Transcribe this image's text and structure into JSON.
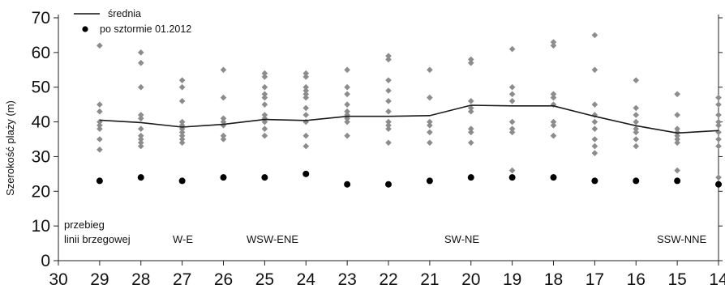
{
  "chart_data": {
    "type": "scatter",
    "ylabel": "Szerokość plaży (m)",
    "xlabel": "",
    "x_ticks": [
      30,
      29,
      28,
      27,
      26,
      25,
      24,
      23,
      22,
      21,
      20,
      19,
      18,
      17,
      16,
      15,
      14
    ],
    "y_ticks": [
      0,
      10,
      20,
      30,
      40,
      50,
      60,
      70
    ],
    "xlim": [
      30,
      14
    ],
    "ylim": [
      0,
      70
    ],
    "legend_position": "top-left",
    "legend": [
      {
        "label": "średnia",
        "marker": "line"
      },
      {
        "label": "po sztormie 01.2012",
        "marker": "dot"
      }
    ],
    "annotations": [
      "przebieg",
      "linii brzegowej",
      "W-E",
      "WSW-ENE",
      "SW-NE",
      "SSW-NNE"
    ],
    "series": [
      {
        "name": "średnia",
        "kind": "line",
        "color": "#1a1a1a",
        "points": [
          [
            29,
            40.5
          ],
          [
            28,
            39.8
          ],
          [
            27,
            38.5
          ],
          [
            26,
            39.3
          ],
          [
            25,
            40.7
          ],
          [
            24,
            40.4
          ],
          [
            23,
            41.6
          ],
          [
            22,
            41.6
          ],
          [
            21,
            41.8
          ],
          [
            20,
            44.8
          ],
          [
            19,
            44.6
          ],
          [
            18,
            44.6
          ],
          [
            17,
            41.6
          ],
          [
            16,
            38.9
          ],
          [
            15,
            36.8
          ],
          [
            14,
            37.5
          ]
        ]
      },
      {
        "name": "po sztormie 01.2012",
        "kind": "dot",
        "color": "#000000",
        "points": [
          [
            29,
            23
          ],
          [
            28,
            24
          ],
          [
            27,
            23
          ],
          [
            26,
            24
          ],
          [
            25,
            24
          ],
          [
            24,
            25
          ],
          [
            23,
            22
          ],
          [
            22,
            22
          ],
          [
            21,
            23
          ],
          [
            20,
            24
          ],
          [
            19,
            24
          ],
          [
            18,
            24
          ],
          [
            17,
            23
          ],
          [
            16,
            23
          ],
          [
            15,
            23
          ],
          [
            14,
            22
          ]
        ]
      },
      {
        "kind": "diamond",
        "color": "#8c8c8c",
        "points": [
          [
            29,
            62
          ],
          [
            29,
            45
          ],
          [
            29,
            43
          ],
          [
            29,
            40
          ],
          [
            29,
            39
          ],
          [
            29,
            38
          ],
          [
            29,
            35
          ],
          [
            29,
            32
          ],
          [
            28,
            60
          ],
          [
            28,
            57
          ],
          [
            28,
            50
          ],
          [
            28,
            42
          ],
          [
            28,
            41
          ],
          [
            28,
            38
          ],
          [
            28,
            36
          ],
          [
            28,
            35
          ],
          [
            28,
            34
          ],
          [
            28,
            33
          ],
          [
            27,
            52
          ],
          [
            27,
            50
          ],
          [
            27,
            46
          ],
          [
            27,
            40
          ],
          [
            27,
            39
          ],
          [
            27,
            38
          ],
          [
            27,
            37
          ],
          [
            27,
            36
          ],
          [
            27,
            35
          ],
          [
            27,
            34
          ],
          [
            26,
            55
          ],
          [
            26,
            47
          ],
          [
            26,
            41
          ],
          [
            26,
            40
          ],
          [
            26,
            39
          ],
          [
            26,
            36
          ],
          [
            26,
            35
          ],
          [
            25,
            54
          ],
          [
            25,
            53
          ],
          [
            25,
            50
          ],
          [
            25,
            48
          ],
          [
            25,
            47
          ],
          [
            25,
            45
          ],
          [
            25,
            42
          ],
          [
            25,
            41
          ],
          [
            25,
            40
          ],
          [
            25,
            38
          ],
          [
            25,
            36
          ],
          [
            24,
            54
          ],
          [
            24,
            53
          ],
          [
            24,
            50
          ],
          [
            24,
            49
          ],
          [
            24,
            48
          ],
          [
            24,
            47
          ],
          [
            24,
            44
          ],
          [
            24,
            42
          ],
          [
            24,
            40
          ],
          [
            24,
            36
          ],
          [
            24,
            33
          ],
          [
            23,
            55
          ],
          [
            23,
            50
          ],
          [
            23,
            48
          ],
          [
            23,
            45
          ],
          [
            23,
            43
          ],
          [
            23,
            42
          ],
          [
            23,
            41
          ],
          [
            23,
            40
          ],
          [
            23,
            36
          ],
          [
            22,
            59
          ],
          [
            22,
            58
          ],
          [
            22,
            52
          ],
          [
            22,
            49
          ],
          [
            22,
            46
          ],
          [
            22,
            43
          ],
          [
            22,
            40
          ],
          [
            22,
            39
          ],
          [
            22,
            38
          ],
          [
            22,
            34
          ],
          [
            21,
            55
          ],
          [
            21,
            47
          ],
          [
            21,
            40
          ],
          [
            21,
            39
          ],
          [
            21,
            37
          ],
          [
            21,
            34
          ],
          [
            20,
            58
          ],
          [
            20,
            57
          ],
          [
            20,
            46
          ],
          [
            20,
            44
          ],
          [
            20,
            43
          ],
          [
            20,
            38
          ],
          [
            20,
            37
          ],
          [
            20,
            34
          ],
          [
            19,
            61
          ],
          [
            19,
            50
          ],
          [
            19,
            48
          ],
          [
            19,
            46
          ],
          [
            19,
            40
          ],
          [
            19,
            38
          ],
          [
            19,
            37
          ],
          [
            19,
            26
          ],
          [
            18,
            63
          ],
          [
            18,
            62
          ],
          [
            18,
            48
          ],
          [
            18,
            47
          ],
          [
            18,
            45
          ],
          [
            18,
            40
          ],
          [
            18,
            39
          ],
          [
            18,
            36
          ],
          [
            17,
            65
          ],
          [
            17,
            55
          ],
          [
            17,
            45
          ],
          [
            17,
            42
          ],
          [
            17,
            40
          ],
          [
            17,
            38
          ],
          [
            17,
            35
          ],
          [
            17,
            33
          ],
          [
            17,
            31
          ],
          [
            16,
            52
          ],
          [
            16,
            44
          ],
          [
            16,
            42
          ],
          [
            16,
            40
          ],
          [
            16,
            38
          ],
          [
            16,
            37
          ],
          [
            16,
            35
          ],
          [
            16,
            33
          ],
          [
            15,
            48
          ],
          [
            15,
            42
          ],
          [
            15,
            38
          ],
          [
            15,
            37
          ],
          [
            15,
            36
          ],
          [
            15,
            35
          ],
          [
            15,
            34
          ],
          [
            15,
            26
          ],
          [
            14,
            47
          ],
          [
            14,
            45
          ],
          [
            14,
            42
          ],
          [
            14,
            40
          ],
          [
            14,
            39
          ],
          [
            14,
            37
          ],
          [
            14,
            35
          ],
          [
            14,
            33
          ],
          [
            14,
            24
          ]
        ]
      }
    ]
  }
}
